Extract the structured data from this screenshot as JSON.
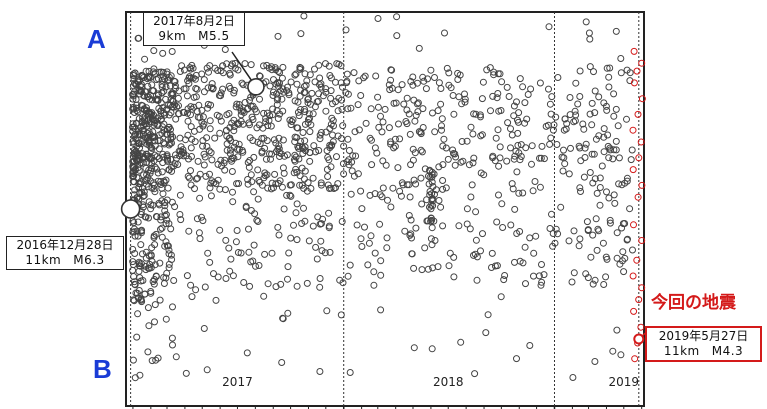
{
  "chart_data": {
    "type": "scatter",
    "title": "",
    "xlabel": "",
    "ylabel": "",
    "x_axis": {
      "start": "2016-12-20",
      "end": "2019-06-05",
      "tick_labels": [
        {
          "label": "2017",
          "date": "2017-07-01"
        },
        {
          "label": "2018",
          "date": "2018-07-01"
        },
        {
          "label": "2019",
          "date": "2019-05-01"
        }
      ],
      "year_boundaries": [
        "2018-01-01",
        "2019-01-01"
      ],
      "minor_ticks": "monthly"
    },
    "y_axis": {
      "top_label": "A",
      "bottom_label": "B",
      "range": [
        0,
        1
      ]
    },
    "grid": "vertical dotted lines at year boundaries",
    "series": [
      {
        "name": "",
        "color": "#444444",
        "marker": "open circle",
        "description": "aftershocks along A-B profile (dense cluster after 2016-12-28, sparser through 2019)"
      },
      {
        "name": "",
        "color": "#d41a1a",
        "marker": "open circle",
        "x_range": [
          "2019-05-27",
          "2019-06-05"
        ],
        "y_points": [
          0.12,
          0.16,
          0.2,
          0.24,
          0.27,
          0.3,
          0.33,
          0.37,
          0.42,
          0.46,
          0.53,
          0.56,
          0.6,
          0.63,
          0.67,
          0.7,
          0.74,
          0.78,
          0.82,
          0.85,
          0.87,
          0.9
        ]
      }
    ],
    "highlights": [
      {
        "date": "2016-12-28",
        "y": 0.5,
        "label": "2016年12月28日",
        "depth": "11km",
        "magnitude": "M6.3",
        "marker": "large open circle",
        "color": "#444444"
      },
      {
        "date": "2017-08-02",
        "y": 0.81,
        "label": "2017年8月2日",
        "depth": "9km",
        "magnitude": "M5.5",
        "marker": "large open circle",
        "color": "#444444"
      },
      {
        "date": "2019-05-27",
        "y": 0.17,
        "label": "2019年5月27日",
        "depth": "11km",
        "magnitude": "M4.3",
        "marker": "open circle",
        "color": "#d41a1a"
      }
    ],
    "annotation_current": "今回の地震"
  }
}
